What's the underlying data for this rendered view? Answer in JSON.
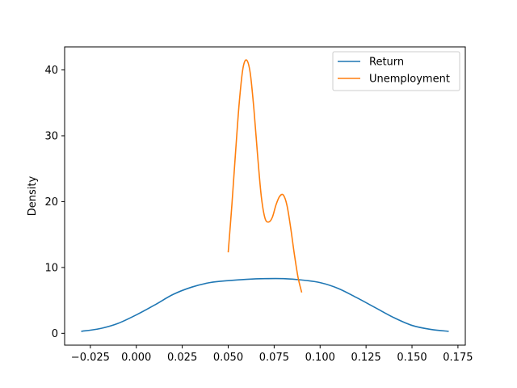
{
  "chart_data": {
    "type": "line",
    "ylabel": "Density",
    "xlim": [
      -0.039,
      0.179
    ],
    "ylim": [
      -1.8,
      43.5
    ],
    "x_ticks": [
      -0.025,
      0.0,
      0.025,
      0.05,
      0.075,
      0.1,
      0.125,
      0.15,
      0.175
    ],
    "x_tick_labels": [
      "−0.025",
      "0.000",
      "0.025",
      "0.050",
      "0.075",
      "0.100",
      "0.125",
      "0.150",
      "0.175"
    ],
    "y_ticks": [
      0,
      10,
      20,
      30,
      40
    ],
    "y_tick_labels": [
      "0",
      "10",
      "20",
      "30",
      "40"
    ],
    "grid": false,
    "legend_position": "top-right",
    "series": [
      {
        "name": "Return",
        "color": "#1f77b4",
        "x": [
          -0.03,
          -0.02,
          -0.01,
          0.0,
          0.01,
          0.02,
          0.03,
          0.04,
          0.05,
          0.06,
          0.07,
          0.08,
          0.09,
          0.1,
          0.11,
          0.12,
          0.13,
          0.14,
          0.15,
          0.16,
          0.17
        ],
        "y": [
          0.3,
          0.7,
          1.5,
          2.8,
          4.3,
          5.9,
          7.0,
          7.7,
          8.0,
          8.2,
          8.3,
          8.3,
          8.1,
          7.7,
          6.8,
          5.4,
          3.9,
          2.4,
          1.2,
          0.6,
          0.3
        ]
      },
      {
        "name": "Unemployment",
        "color": "#ff7f0e",
        "x": [
          0.05,
          0.052,
          0.054,
          0.056,
          0.058,
          0.06,
          0.062,
          0.064,
          0.066,
          0.068,
          0.07,
          0.072,
          0.074,
          0.076,
          0.078,
          0.08,
          0.082,
          0.084,
          0.086,
          0.088,
          0.09
        ],
        "y": [
          12.3,
          19.5,
          27.5,
          35.0,
          40.2,
          41.5,
          39.5,
          34.0,
          27.0,
          20.8,
          17.5,
          16.9,
          17.6,
          19.5,
          20.8,
          21.0,
          19.4,
          16.0,
          12.0,
          8.5,
          6.2
        ]
      }
    ]
  }
}
